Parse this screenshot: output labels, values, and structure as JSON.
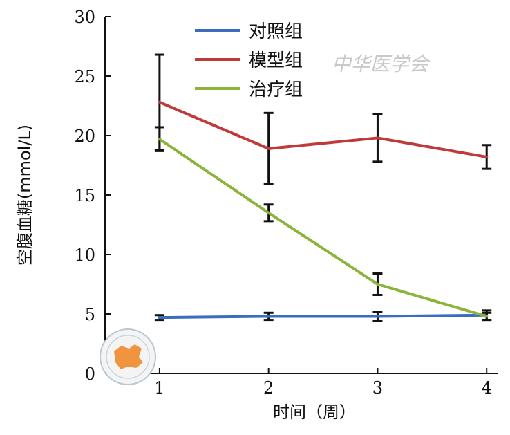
{
  "chart_data": {
    "type": "line",
    "x": [
      1,
      2,
      3,
      4
    ],
    "xlabel": "时间（周）",
    "ylabel": "空腹血糖(mmol/L)",
    "ylim": [
      0,
      30
    ],
    "yticks": [
      0,
      5,
      10,
      15,
      20,
      25,
      30
    ],
    "xticks": [
      1,
      2,
      3,
      4
    ],
    "grid": false,
    "legend_position": "top-center",
    "series": [
      {
        "name": "对照组",
        "color": "#3a6cbf",
        "values": [
          4.7,
          4.8,
          4.8,
          4.9
        ],
        "errors": [
          0.2,
          0.3,
          0.4,
          0.4
        ]
      },
      {
        "name": "模型组",
        "color": "#c03a3a",
        "values": [
          22.8,
          18.9,
          19.8,
          18.2
        ],
        "errors": [
          4.0,
          3.0,
          2.0,
          1.0
        ]
      },
      {
        "name": "治疗组",
        "color": "#8ab43a",
        "values": [
          19.7,
          13.5,
          7.5,
          4.8
        ],
        "errors": [
          1.0,
          0.7,
          0.9,
          0.3
        ]
      }
    ]
  },
  "watermark": {
    "text": "中华医学会"
  }
}
